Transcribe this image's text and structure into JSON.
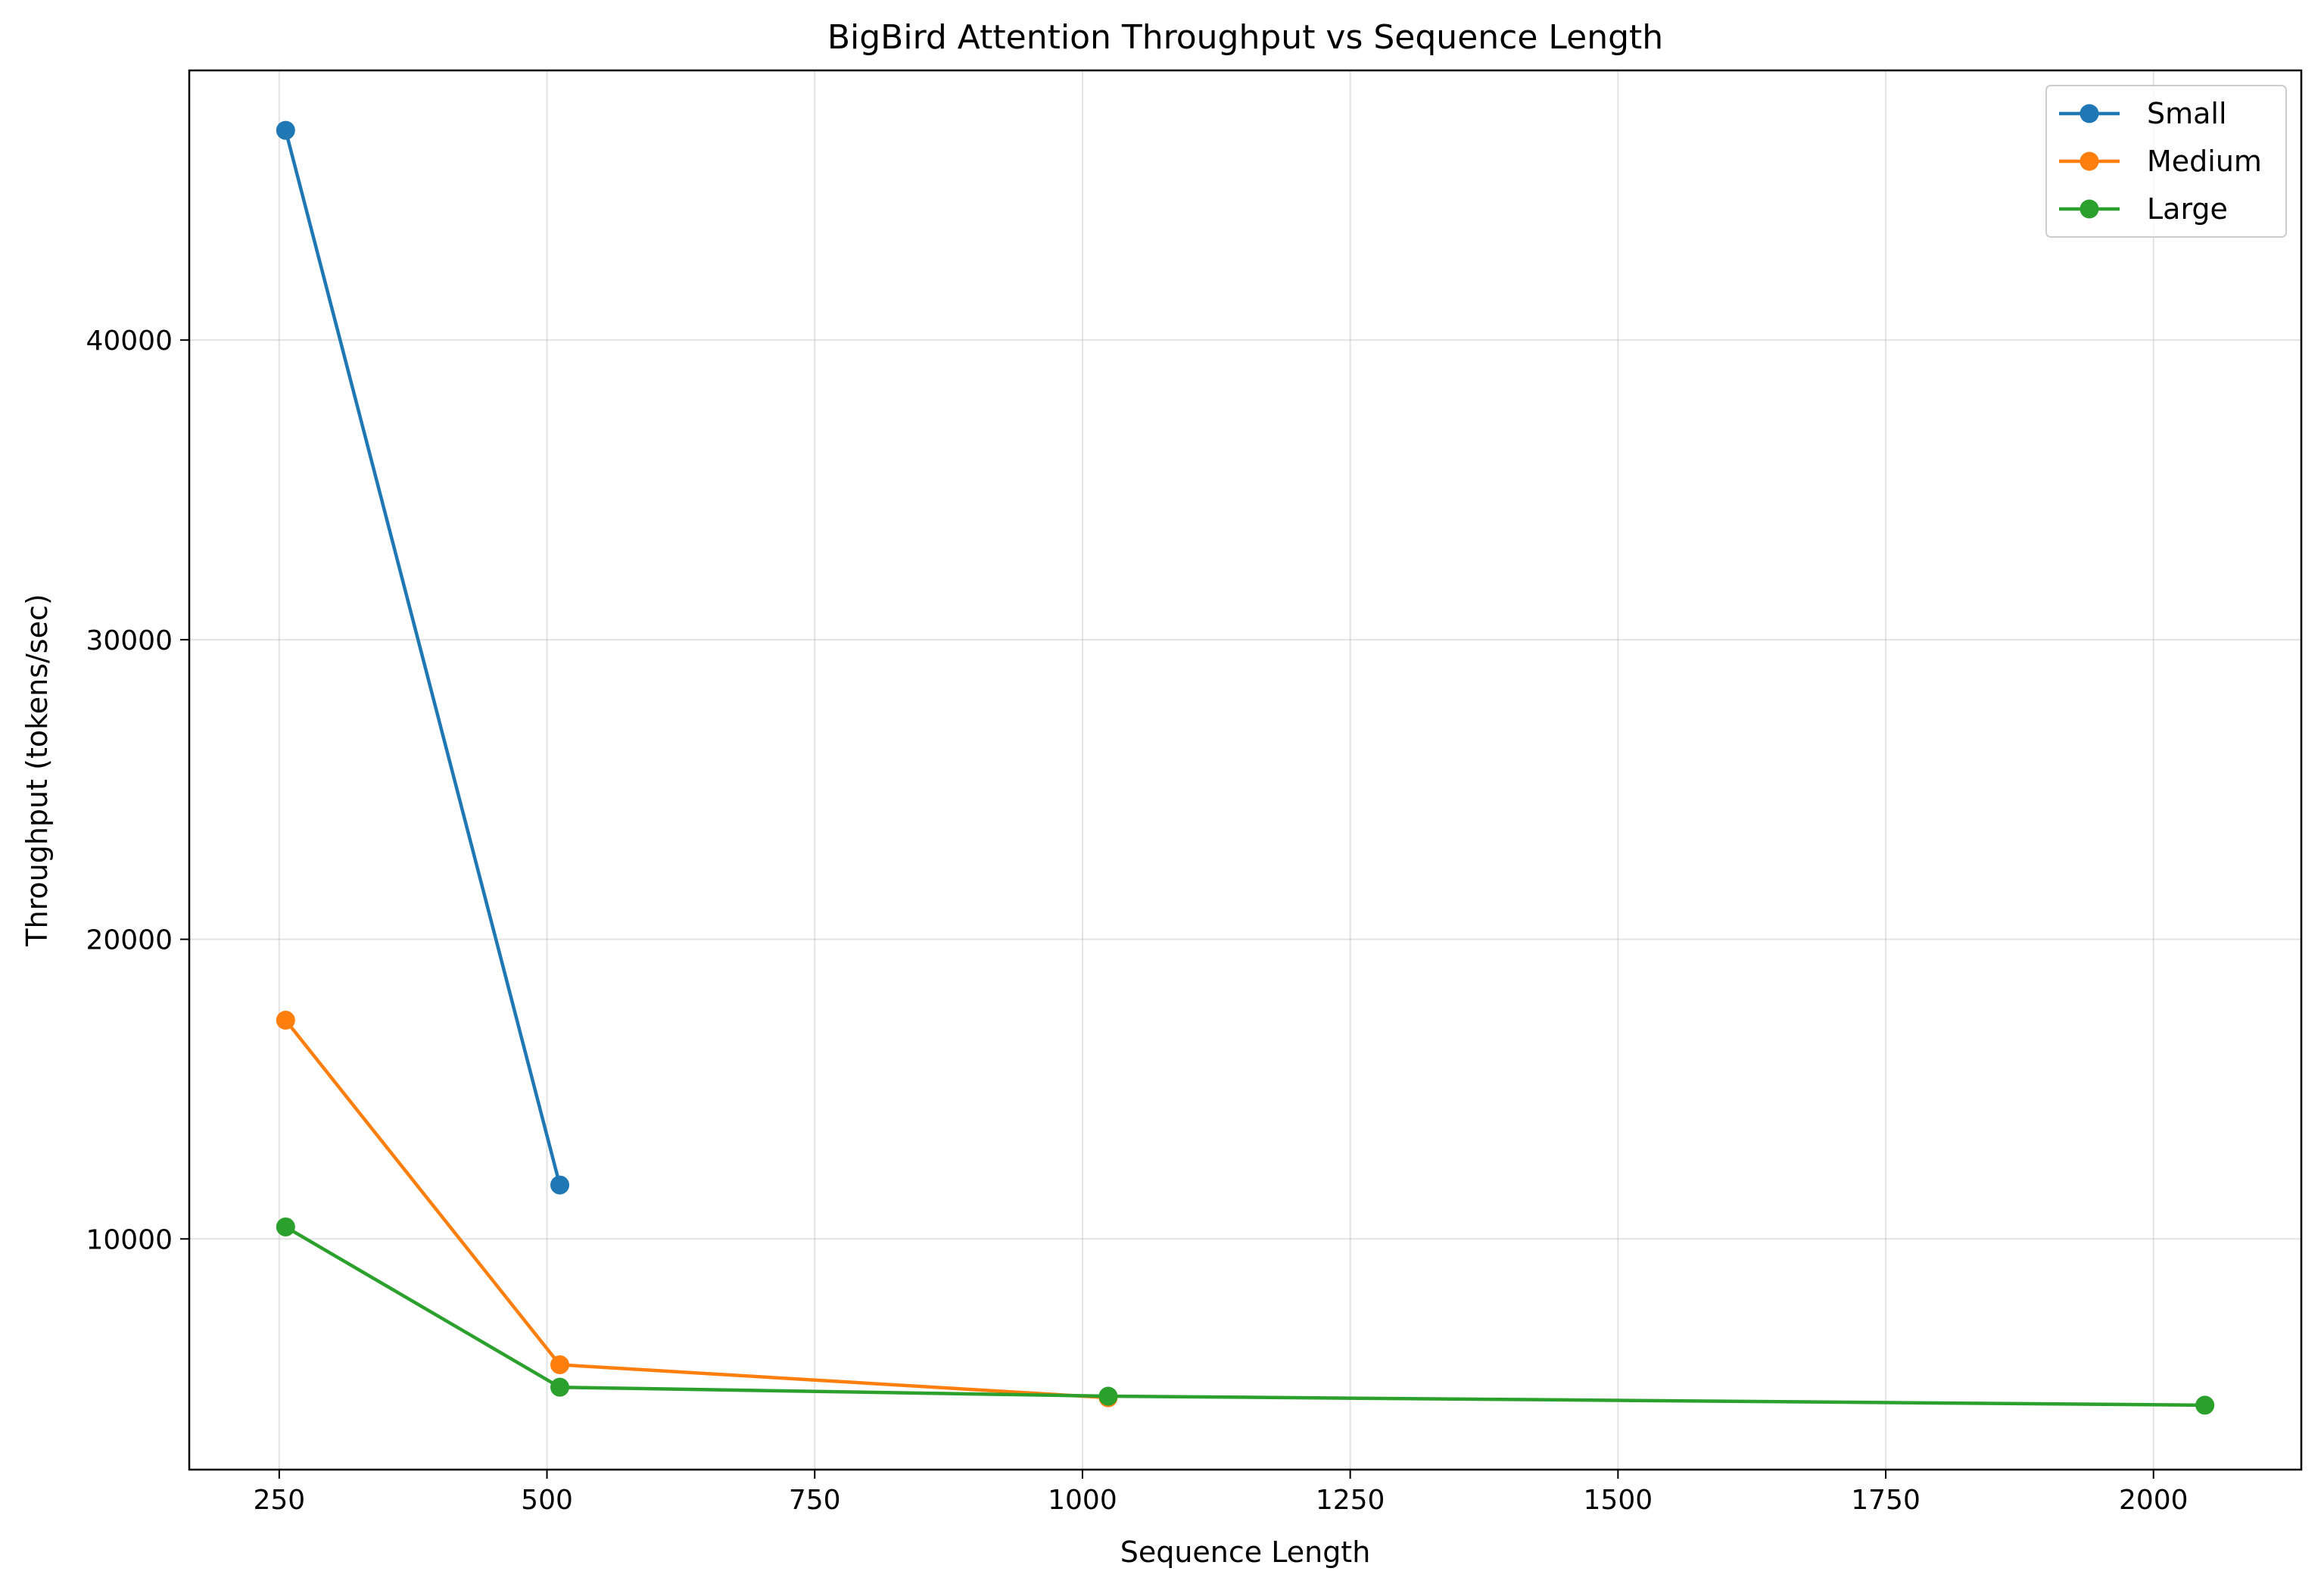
{
  "chart_data": {
    "type": "line",
    "title": "BigBird Attention Throughput vs Sequence Length",
    "xlabel": "Sequence Length",
    "ylabel": "Throughput (tokens/sec)",
    "xlim": [
      166,
      2138
    ],
    "ylim": [
      2300,
      49000
    ],
    "xticks": [
      250,
      500,
      750,
      1000,
      1250,
      1500,
      1750,
      2000
    ],
    "yticks": [
      10000,
      20000,
      30000,
      40000
    ],
    "grid": true,
    "legend_position": "top-right",
    "series": [
      {
        "name": "Small",
        "color": "#1f77b4",
        "x": [
          256,
          512
        ],
        "y": [
          47000,
          11800
        ]
      },
      {
        "name": "Medium",
        "color": "#ff7f0e",
        "x": [
          256,
          512,
          1024
        ],
        "y": [
          17300,
          5800,
          4700
        ]
      },
      {
        "name": "Large",
        "color": "#2ca02c",
        "x": [
          256,
          512,
          1024,
          2048
        ],
        "y": [
          10400,
          5050,
          4750,
          4450
        ]
      }
    ]
  }
}
